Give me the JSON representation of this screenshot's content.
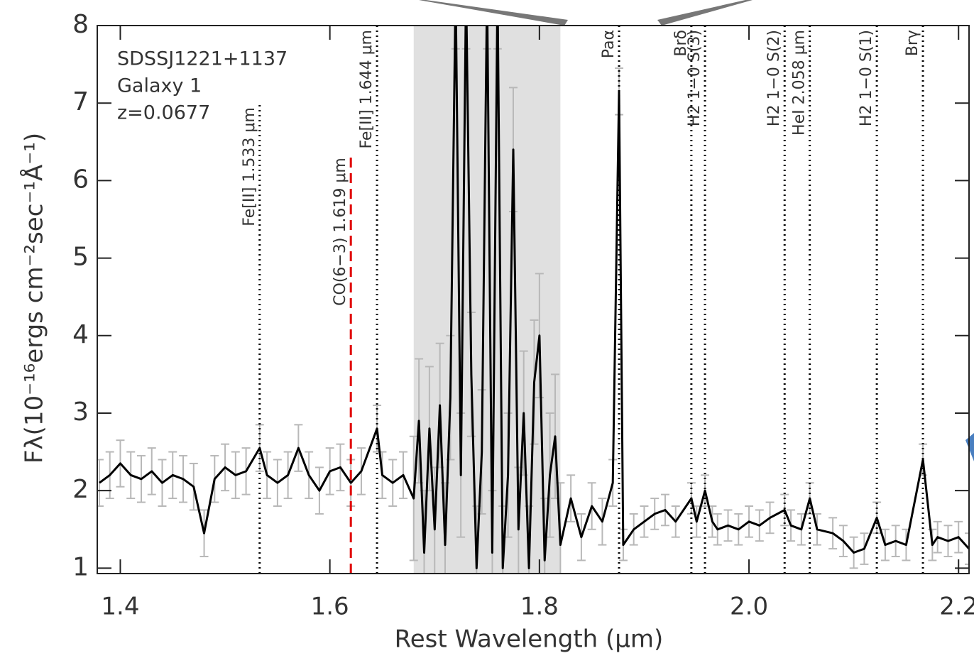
{
  "chart_data": {
    "type": "line",
    "annotations": [
      "SDSSJ1221+1137",
      "Galaxy 1",
      "z=0.0677"
    ],
    "x_label": "Rest Wavelength (μm)",
    "y_label": "Fλ(10⁻¹⁶ergs cm⁻²sec⁻¹Å⁻¹)",
    "xlim": [
      1.378,
      2.21
    ],
    "ylim": [
      0.93,
      8
    ],
    "xticks": [
      1.4,
      1.6,
      1.8,
      {
        "value": 2.0,
        "label": "2.0"
      },
      2.2
    ],
    "yticks": [
      1,
      2,
      3,
      4,
      5,
      6,
      7,
      8
    ],
    "color": "#000000",
    "error_color": "#b8b8b8",
    "shaded": [
      1.68,
      1.82
    ],
    "shade_color": "#e0e0e0",
    "x": [
      1.38,
      1.39,
      1.4,
      1.41,
      1.42,
      1.43,
      1.44,
      1.45,
      1.46,
      1.47,
      1.48,
      1.49,
      1.5,
      1.51,
      1.52,
      1.533,
      1.54,
      1.55,
      1.56,
      1.57,
      1.58,
      1.59,
      1.6,
      1.61,
      1.62,
      1.63,
      1.645,
      1.65,
      1.66,
      1.67,
      1.68,
      1.685,
      1.69,
      1.695,
      1.7,
      1.705,
      1.71,
      1.715,
      1.72,
      1.725,
      1.73,
      1.735,
      1.74,
      1.745,
      1.75,
      1.755,
      1.76,
      1.765,
      1.77,
      1.775,
      1.78,
      1.785,
      1.79,
      1.795,
      1.8,
      1.805,
      1.81,
      1.815,
      1.82,
      1.83,
      1.84,
      1.85,
      1.86,
      1.87,
      1.876,
      1.88,
      1.89,
      1.9,
      1.91,
      1.92,
      1.93,
      1.945,
      1.95,
      1.958,
      1.965,
      1.97,
      1.98,
      1.99,
      2.0,
      2.01,
      2.02,
      2.034,
      2.04,
      2.05,
      2.058,
      2.065,
      2.08,
      2.09,
      2.1,
      2.11,
      2.122,
      2.13,
      2.14,
      2.15,
      2.166,
      2.175,
      2.18,
      2.19,
      2.2,
      2.21
    ],
    "values": [
      2.1,
      2.2,
      2.35,
      2.2,
      2.15,
      2.25,
      2.1,
      2.2,
      2.15,
      2.05,
      1.45,
      2.15,
      2.3,
      2.2,
      2.25,
      2.55,
      2.2,
      2.1,
      2.2,
      2.55,
      2.2,
      2.0,
      2.25,
      2.3,
      2.1,
      2.25,
      2.8,
      2.2,
      2.1,
      2.2,
      1.9,
      2.9,
      1.2,
      2.8,
      1.5,
      3.1,
      1.3,
      3.2,
      8.5,
      2.2,
      8.5,
      3.5,
      1.0,
      2.5,
      8.5,
      1.2,
      8.5,
      1.0,
      2.2,
      6.4,
      1.5,
      3.0,
      1.0,
      3.4,
      4.0,
      1.1,
      2.2,
      2.7,
      1.3,
      1.9,
      1.4,
      1.8,
      1.6,
      2.1,
      7.15,
      1.3,
      1.5,
      1.6,
      1.7,
      1.75,
      1.6,
      1.9,
      1.6,
      2.0,
      1.6,
      1.5,
      1.55,
      1.5,
      1.6,
      1.55,
      1.65,
      1.75,
      1.55,
      1.5,
      1.9,
      1.5,
      1.45,
      1.35,
      1.2,
      1.25,
      1.65,
      1.3,
      1.35,
      1.3,
      2.4,
      1.3,
      1.4,
      1.35,
      1.4,
      1.25
    ],
    "errors": [
      0.3,
      0.3,
      0.3,
      0.3,
      0.3,
      0.3,
      0.3,
      0.3,
      0.3,
      0.3,
      0.3,
      0.3,
      0.3,
      0.3,
      0.3,
      0.3,
      0.3,
      0.3,
      0.3,
      0.3,
      0.3,
      0.3,
      0.3,
      0.3,
      0.3,
      0.3,
      0.3,
      0.3,
      0.3,
      0.3,
      0.8,
      0.8,
      0.8,
      0.8,
      0.8,
      0.8,
      0.8,
      0.8,
      0.8,
      0.8,
      0.8,
      0.8,
      0.8,
      0.8,
      0.8,
      0.8,
      0.8,
      0.8,
      0.8,
      0.8,
      0.8,
      0.8,
      0.8,
      0.8,
      0.8,
      0.8,
      0.8,
      0.8,
      0.8,
      0.3,
      0.3,
      0.3,
      0.3,
      0.3,
      0.3,
      0.2,
      0.2,
      0.2,
      0.2,
      0.2,
      0.2,
      0.2,
      0.2,
      0.2,
      0.2,
      0.2,
      0.2,
      0.2,
      0.2,
      0.2,
      0.2,
      0.2,
      0.2,
      0.2,
      0.2,
      0.2,
      0.2,
      0.2,
      0.2,
      0.2,
      0.2,
      0.2,
      0.2,
      0.2,
      0.2,
      0.2,
      0.2,
      0.2,
      0.2,
      0.2
    ],
    "lines": [
      {
        "label": "Fe[II] 1.533 μm",
        "x": 1.533,
        "ymax": 7.0,
        "style": "dotted",
        "color": "#000000"
      },
      {
        "label": "CO(6−3) 1.619 μm",
        "x": 1.62,
        "ymax": 6.35,
        "style": "dashed",
        "color": "#e00000"
      },
      {
        "label": "Fe[II] 1.644 μm",
        "x": 1.645,
        "ymax": 8,
        "style": "dotted",
        "color": "#000000"
      },
      {
        "label": "Paα",
        "x": 1.876,
        "ymax": 8,
        "style": "dotted",
        "color": "#000000"
      },
      {
        "label": "Brδ",
        "x": 1.945,
        "ymax": 8,
        "style": "dotted",
        "color": "#000000"
      },
      {
        "label": "H2 1−0 S(3)",
        "x": 1.958,
        "ymax": 8,
        "style": "dotted",
        "color": "#000000"
      },
      {
        "label": "H2 1−0 S(2)",
        "x": 2.034,
        "ymax": 8,
        "style": "dotted",
        "color": "#000000"
      },
      {
        "label": "HeI 2.058 μm",
        "x": 2.058,
        "ymax": 8,
        "style": "dotted",
        "color": "#000000"
      },
      {
        "label": "H2 1−0 S(1)",
        "x": 2.122,
        "ymax": 8,
        "style": "dotted",
        "color": "#000000"
      },
      {
        "label": "Brγ",
        "x": 2.166,
        "ymax": 8,
        "style": "dotted",
        "color": "#000000"
      }
    ]
  }
}
